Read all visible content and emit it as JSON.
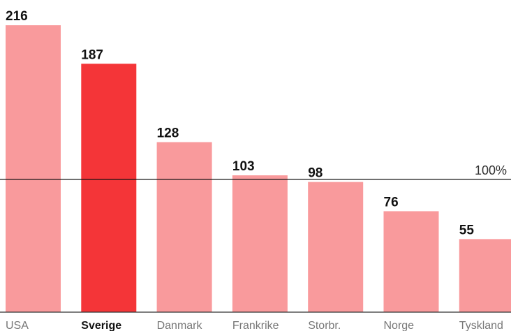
{
  "chart_data": {
    "type": "bar",
    "categories": [
      "USA",
      "Sverige",
      "Danmark",
      "Frankrike",
      "Storbr.",
      "Norge",
      "Tyskland"
    ],
    "values": [
      216,
      187,
      128,
      103,
      98,
      76,
      55
    ],
    "color": "#f99a9c",
    "highlight": "Sverige",
    "highlight_color": "#f43538",
    "ylim": [
      0,
      235
    ],
    "reference_line": {
      "value": 100,
      "label": "100%"
    }
  }
}
